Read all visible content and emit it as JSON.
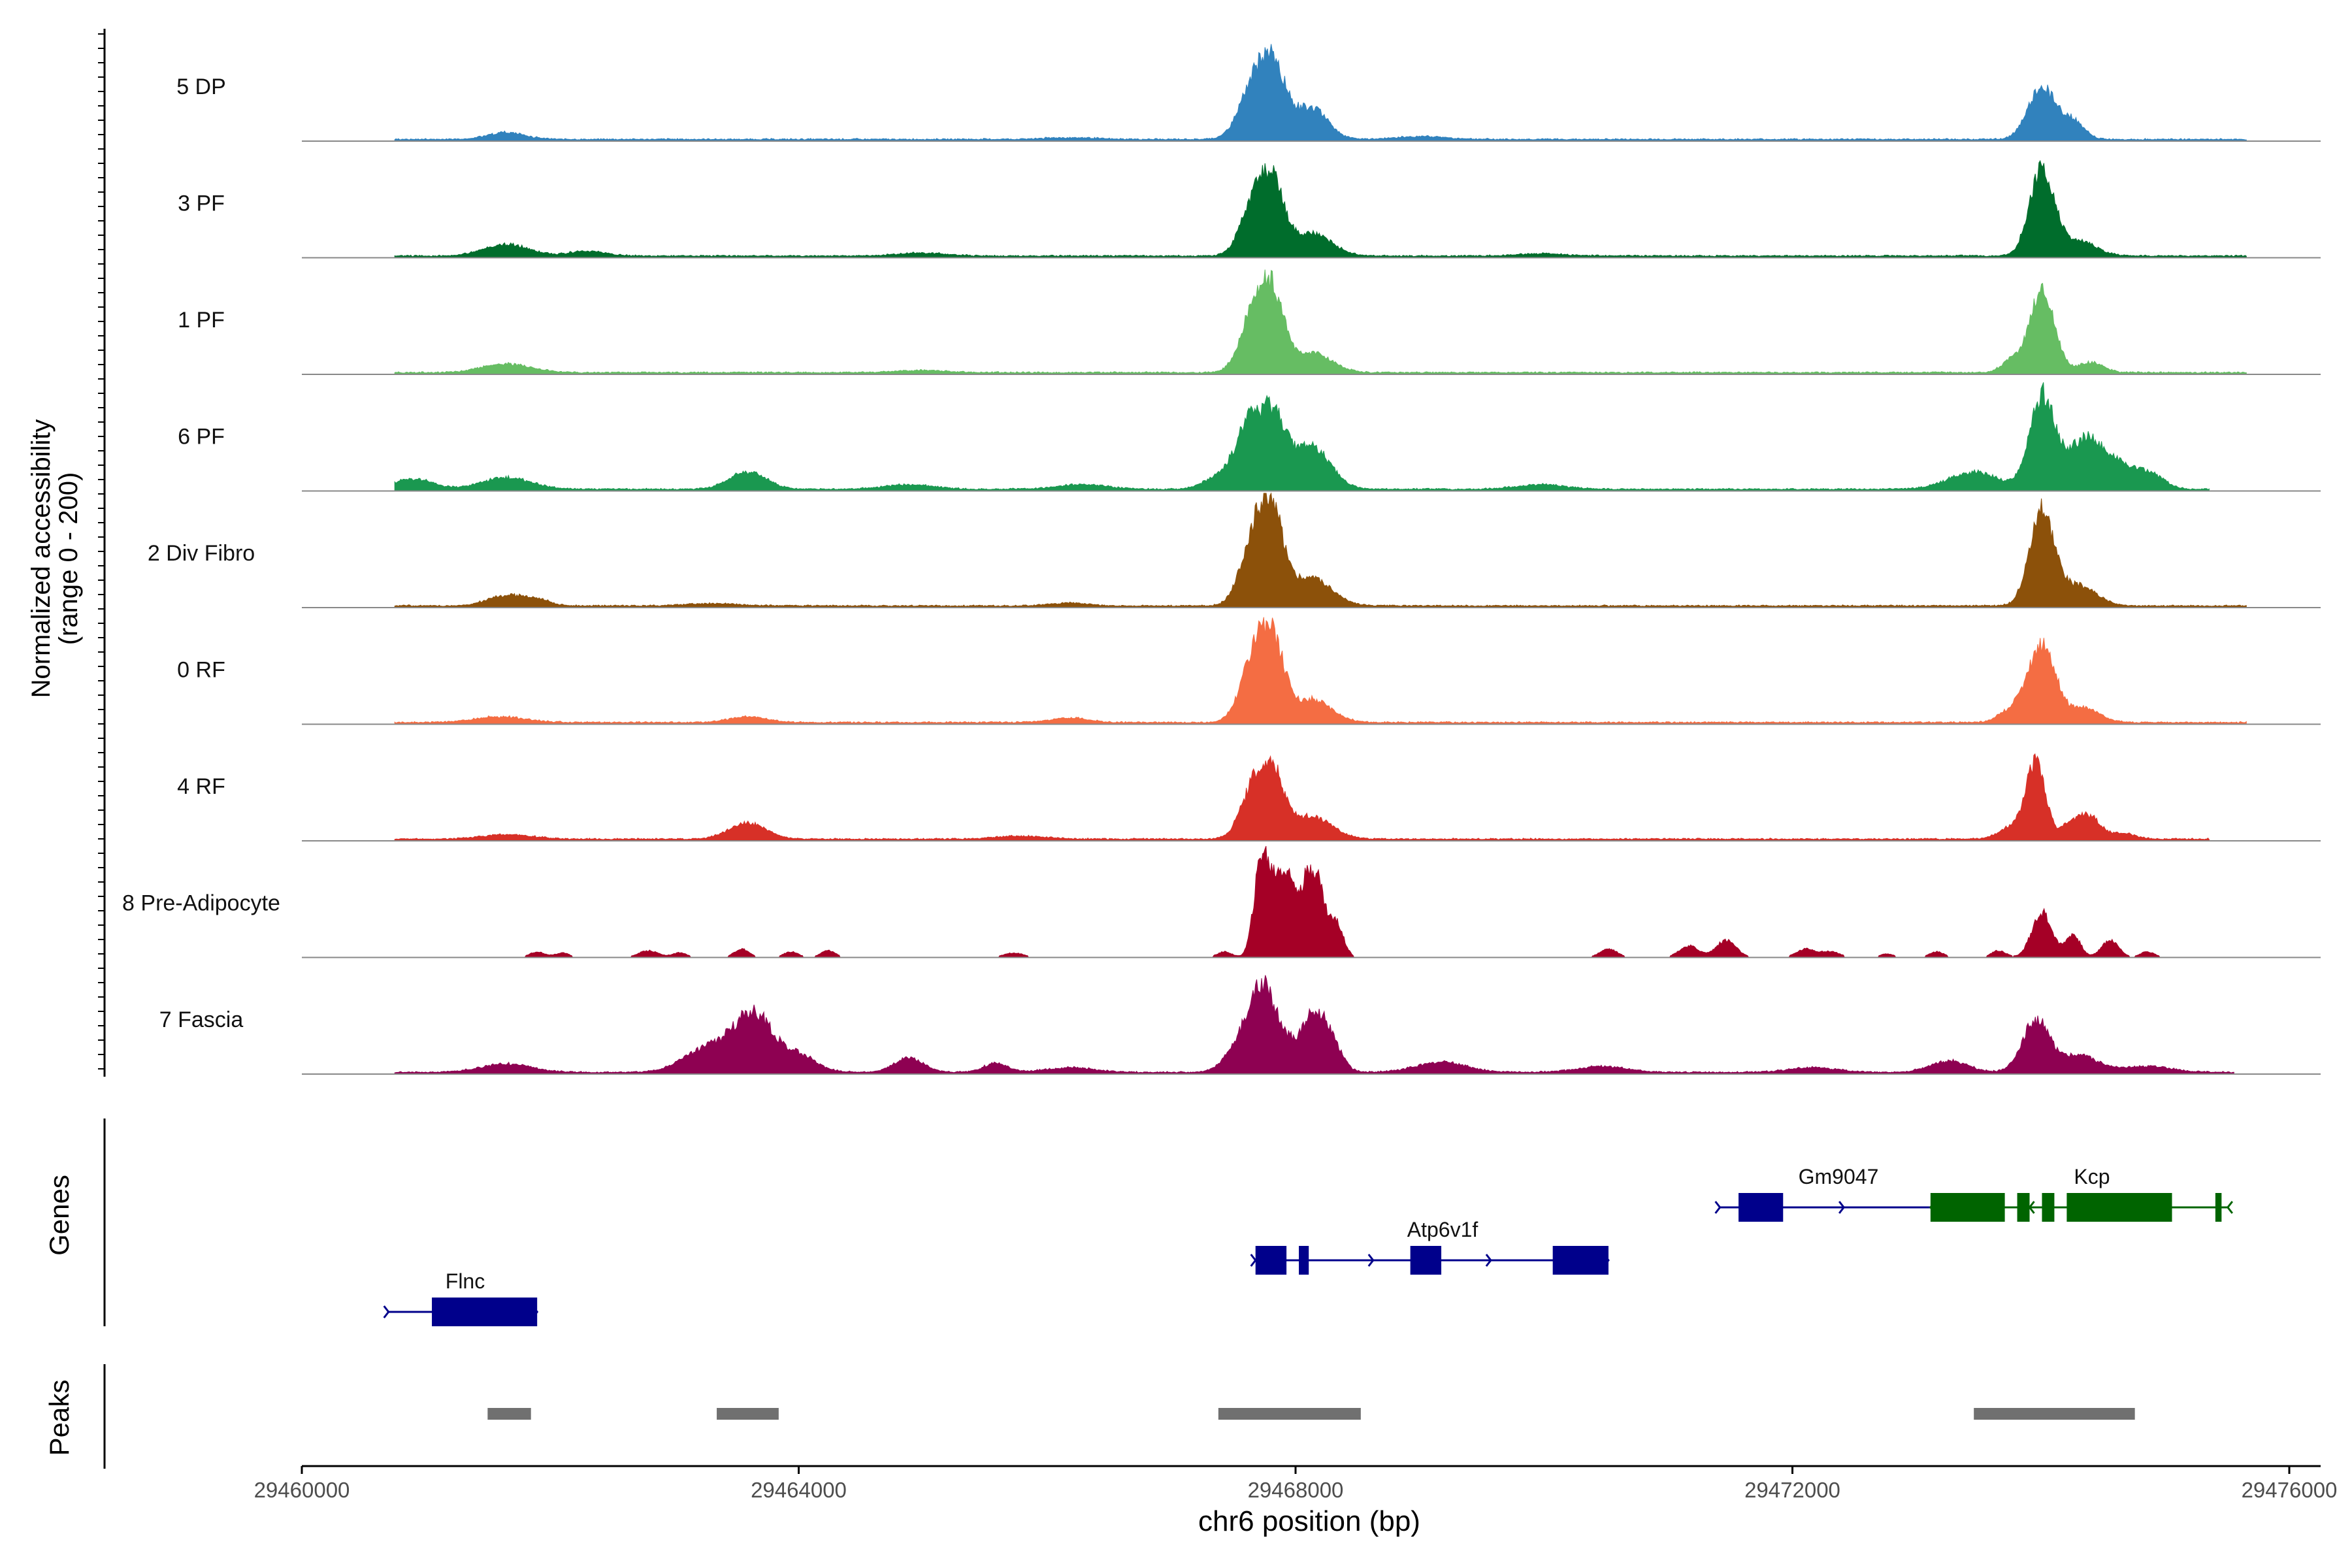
{
  "chart_data": {
    "type": "area",
    "title": "",
    "x_axis": {
      "label": "chr6 position (bp)",
      "range": [
        29460000,
        29476300
      ],
      "ticks": [
        29460000,
        29464000,
        29468000,
        29472000,
        29476000
      ],
      "tick_labels": [
        "29460000",
        "29464000",
        "29468000",
        "29472000",
        "29476000"
      ]
    },
    "y_axis": {
      "label_line1": "Normalized accessibility",
      "label_line2": "(range 0 - 200)",
      "range": [
        0,
        200
      ]
    },
    "tracks": [
      {
        "name": "5 DP",
        "color": "#3182BD",
        "extent": [
          29460750,
          29475700
        ],
        "peaks": [
          [
            29461650,
            150,
            12
          ],
          [
            29467700,
            120,
            100
          ],
          [
            29467860,
            100,
            95
          ],
          [
            29468150,
            130,
            55
          ],
          [
            29474050,
            110,
            92
          ],
          [
            29474300,
            90,
            30
          ],
          [
            29469050,
            200,
            5
          ],
          [
            29466200,
            200,
            3
          ]
        ]
      },
      {
        "name": "3 PF",
        "color": "#006D2C",
        "extent": [
          29460750,
          29475700
        ],
        "peaks": [
          [
            29461650,
            180,
            20
          ],
          [
            29467700,
            110,
            100
          ],
          [
            29467850,
            90,
            95
          ],
          [
            29468150,
            160,
            40
          ],
          [
            29474050,
            100,
            150
          ],
          [
            29474350,
            140,
            25
          ],
          [
            29462300,
            150,
            8
          ],
          [
            29465000,
            200,
            5
          ],
          [
            29470000,
            200,
            4
          ]
        ]
      },
      {
        "name": "1 PF",
        "color": "#66BD63",
        "extent": [
          29460750,
          29475700
        ],
        "peaks": [
          [
            29461650,
            200,
            15
          ],
          [
            29467700,
            110,
            115
          ],
          [
            29467850,
            90,
            100
          ],
          [
            29468150,
            160,
            35
          ],
          [
            29473800,
            80,
            20
          ],
          [
            29474050,
            100,
            145
          ],
          [
            29474450,
            100,
            18
          ],
          [
            29465000,
            200,
            4
          ]
        ]
      },
      {
        "name": "6 PF",
        "color": "#1A9850",
        "extent": [
          29460750,
          29475400
        ],
        "peaks": [
          [
            29460900,
            150,
            18
          ],
          [
            29461650,
            200,
            20
          ],
          [
            29463600,
            150,
            30
          ],
          [
            29464900,
            200,
            8
          ],
          [
            29467650,
            110,
            110
          ],
          [
            29467850,
            100,
            110
          ],
          [
            29468150,
            150,
            75
          ],
          [
            29467400,
            120,
            20
          ],
          [
            29470000,
            200,
            8
          ],
          [
            29473500,
            200,
            30
          ],
          [
            29474050,
            100,
            160
          ],
          [
            29474400,
            150,
            85
          ],
          [
            29474700,
            150,
            35
          ],
          [
            29474950,
            100,
            20
          ],
          [
            29466300,
            200,
            8
          ]
        ]
      },
      {
        "name": "2 Div Fibro",
        "color": "#8C510A",
        "extent": [
          29460750,
          29475700
        ],
        "peaks": [
          [
            29461650,
            150,
            18
          ],
          [
            29461900,
            100,
            10
          ],
          [
            29467700,
            110,
            130
          ],
          [
            29467850,
            90,
            120
          ],
          [
            29468150,
            160,
            50
          ],
          [
            29474050,
            100,
            165
          ],
          [
            29474350,
            140,
            35
          ],
          [
            29466200,
            150,
            5
          ],
          [
            29463300,
            200,
            4
          ]
        ]
      },
      {
        "name": "0 RF",
        "color": "#F46D43",
        "extent": [
          29460750,
          29475700
        ],
        "peaks": [
          [
            29461600,
            200,
            10
          ],
          [
            29463600,
            150,
            10
          ],
          [
            29467700,
            110,
            120
          ],
          [
            29467850,
            90,
            105
          ],
          [
            29468150,
            160,
            40
          ],
          [
            29473800,
            100,
            20
          ],
          [
            29474050,
            110,
            135
          ],
          [
            29474400,
            120,
            25
          ],
          [
            29466200,
            150,
            8
          ]
        ]
      },
      {
        "name": "4 RF",
        "color": "#D73027",
        "extent": [
          29460750,
          29475400
        ],
        "peaks": [
          [
            29461650,
            200,
            8
          ],
          [
            29463600,
            150,
            28
          ],
          [
            29467700,
            110,
            95
          ],
          [
            29467850,
            90,
            85
          ],
          [
            29468150,
            160,
            40
          ],
          [
            29473800,
            100,
            20
          ],
          [
            29474000,
            80,
            130
          ],
          [
            29474300,
            80,
            30
          ],
          [
            29474450,
            80,
            35
          ],
          [
            29474700,
            100,
            10
          ],
          [
            29465800,
            200,
            5
          ]
        ]
      },
      {
        "name": "8 Pre-Adipocyte",
        "color": "#A50026",
        "extent": [
          29461800,
          29475300
        ],
        "peaks": [
          [
            29461900,
            60,
            10
          ],
          [
            29462100,
            60,
            8
          ],
          [
            29462800,
            80,
            12
          ],
          [
            29463050,
            60,
            8
          ],
          [
            29463550,
            60,
            15
          ],
          [
            29463950,
            60,
            10
          ],
          [
            29464250,
            60,
            12
          ],
          [
            29465750,
            80,
            8
          ],
          [
            29467750,
            60,
            170
          ],
          [
            29467900,
            70,
            140
          ],
          [
            29468000,
            50,
            60
          ],
          [
            29468100,
            60,
            100
          ],
          [
            29468200,
            60,
            120
          ],
          [
            29468350,
            60,
            60
          ],
          [
            29467450,
            60,
            10
          ],
          [
            29470550,
            70,
            15
          ],
          [
            29471200,
            80,
            20
          ],
          [
            29471500,
            80,
            30
          ],
          [
            29472150,
            80,
            15
          ],
          [
            29472350,
            70,
            10
          ],
          [
            29473200,
            60,
            10
          ],
          [
            29473700,
            60,
            12
          ],
          [
            29474050,
            80,
            80
          ],
          [
            29474300,
            60,
            40
          ],
          [
            29474600,
            70,
            30
          ],
          [
            29474900,
            60,
            10
          ],
          [
            29472800,
            60,
            6
          ]
        ]
      },
      {
        "name": "7 Fascia",
        "color": "#8E0152",
        "extent": [
          29460750,
          29475600
        ],
        "peaks": [
          [
            29461650,
            200,
            15
          ],
          [
            29463300,
            200,
            45
          ],
          [
            29463650,
            150,
            95
          ],
          [
            29464000,
            150,
            30
          ],
          [
            29464900,
            120,
            25
          ],
          [
            29467600,
            120,
            60
          ],
          [
            29467750,
            90,
            110
          ],
          [
            29467900,
            100,
            60
          ],
          [
            29468150,
            90,
            90
          ],
          [
            29468300,
            90,
            55
          ],
          [
            29469200,
            200,
            18
          ],
          [
            29470500,
            200,
            10
          ],
          [
            29473300,
            150,
            20
          ],
          [
            29474000,
            110,
            90
          ],
          [
            29474350,
            150,
            30
          ],
          [
            29474900,
            200,
            10
          ],
          [
            29466200,
            200,
            8
          ],
          [
            29472200,
            200,
            8
          ],
          [
            29465600,
            100,
            15
          ]
        ]
      }
    ],
    "genes": [
      {
        "name": "Flnc",
        "color": "#00008B",
        "strand": "+",
        "start": 29460700,
        "end": 29461900,
        "exons": [
          [
            29461050,
            29461900
          ]
        ]
      },
      {
        "name": "Atp6v1f",
        "color": "#00008B",
        "strand": "+",
        "start": 29467700,
        "end": 29470550,
        "exons": [
          [
            29467700,
            29467950
          ],
          [
            29468050,
            29468130
          ],
          [
            29468950,
            29469200
          ],
          [
            29470100,
            29470550
          ]
        ]
      },
      {
        "name": "Gm9047",
        "color": "#00008B",
        "strand": "+",
        "start": 29471450,
        "end": 29473450,
        "exons": [
          [
            29471600,
            29471960
          ],
          [
            29473300,
            29473450
          ]
        ]
      },
      {
        "name": "Kcp",
        "color": "#006400",
        "strand": "-",
        "start": 29473150,
        "end": 29475550,
        "exons": [
          [
            29473150,
            29473750
          ],
          [
            29473850,
            29473950
          ],
          [
            29474050,
            29474150
          ],
          [
            29474250,
            29475100
          ],
          [
            29475450,
            29475500
          ]
        ]
      }
    ],
    "peaks_track": [
      [
        29461500,
        29461850
      ],
      [
        29463350,
        29463850
      ],
      [
        29467400,
        29468550
      ],
      [
        29473500,
        29474800
      ]
    ],
    "panel_labels": {
      "genes": "Genes",
      "peaks": "Peaks"
    }
  }
}
